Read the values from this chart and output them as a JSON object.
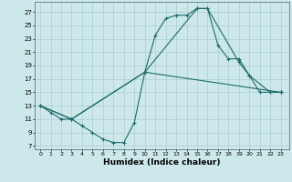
{
  "background_color": "#cde8eb",
  "grid_color": "#aacdd2",
  "line_color": "#1e6b6b",
  "xlabel": "Humidex (Indice chaleur)",
  "xlabel_fontsize": 6.5,
  "yticks": [
    7,
    9,
    11,
    13,
    15,
    17,
    19,
    21,
    23,
    25,
    27
  ],
  "xticks": [
    0,
    1,
    2,
    3,
    4,
    5,
    6,
    7,
    8,
    9,
    10,
    11,
    12,
    13,
    14,
    15,
    16,
    17,
    18,
    19,
    20,
    21,
    22,
    23
  ],
  "xlim": [
    -0.5,
    23.8
  ],
  "ylim": [
    6.5,
    28.5
  ],
  "line1_x": [
    0,
    1,
    2,
    3,
    4,
    5,
    6,
    7,
    8,
    9,
    10,
    11,
    12,
    13,
    14,
    15,
    16,
    17,
    18,
    19,
    20,
    21,
    22,
    23
  ],
  "line1_y": [
    13,
    12,
    11,
    11,
    10,
    9,
    8,
    7.5,
    7.5,
    10.5,
    18,
    23.5,
    26,
    26.5,
    26.5,
    27.5,
    27.5,
    22,
    20,
    20,
    17.5,
    15,
    15,
    15
  ],
  "line2_x": [
    0,
    3,
    10,
    15,
    16,
    19,
    20,
    22,
    23
  ],
  "line2_y": [
    13,
    11,
    18,
    27.5,
    27.5,
    19.5,
    17.5,
    15,
    15
  ],
  "line3_x": [
    0,
    3,
    10,
    23
  ],
  "line3_y": [
    13,
    11,
    18,
    15
  ]
}
